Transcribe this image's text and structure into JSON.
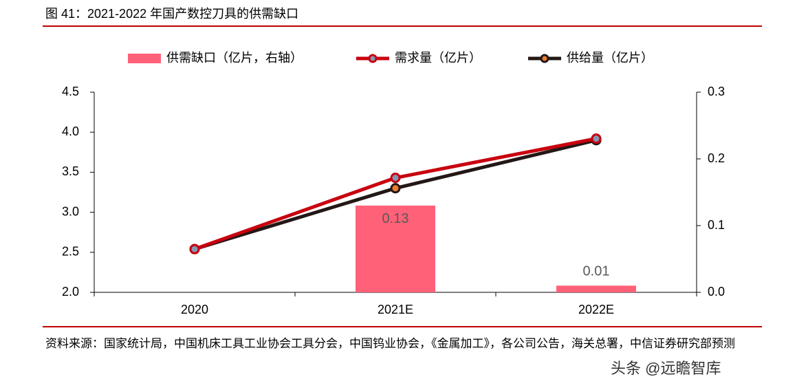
{
  "chart_data": {
    "type": "bar",
    "title": "图 41：2021-2022 年国产数控刀具的供需缺口",
    "categories": [
      "2020",
      "2021E",
      "2022E"
    ],
    "series": [
      {
        "name": "供需缺口（亿片，右轴）",
        "type": "bar",
        "axis": "y2",
        "color": "#ff6178",
        "values": [
          null,
          0.13,
          0.01
        ]
      },
      {
        "name": "需求量（亿片）",
        "type": "line",
        "color": "#c8000f",
        "marker_color": "#8497b0",
        "values": [
          2.54,
          3.43,
          3.92
        ]
      },
      {
        "name": "供给量（亿片）",
        "type": "line",
        "color": "#231815",
        "marker_color": "#ed7d31",
        "values": [
          2.54,
          3.3,
          3.9
        ]
      }
    ],
    "ylim": [
      2.0,
      4.5
    ],
    "yticks": [
      {
        "value": 2,
        "label": "2.0"
      },
      2.5,
      {
        "value": 3,
        "label": "3.0"
      },
      3.5,
      {
        "value": 4,
        "label": "4.0"
      },
      4.5
    ],
    "y2lim": [
      0,
      0.3
    ],
    "y2ticks": [
      {
        "value": 0,
        "label": "0.0"
      },
      0.1,
      0.2,
      0.3
    ],
    "legend": "top",
    "source": "资料来源：国家统计局，中国机床工具工业协会工具分会，中国钨业协会，《金属加工》，各公司公告，海关总署，中信证券研究部预测",
    "watermark": "头条 @远瞻智库"
  }
}
